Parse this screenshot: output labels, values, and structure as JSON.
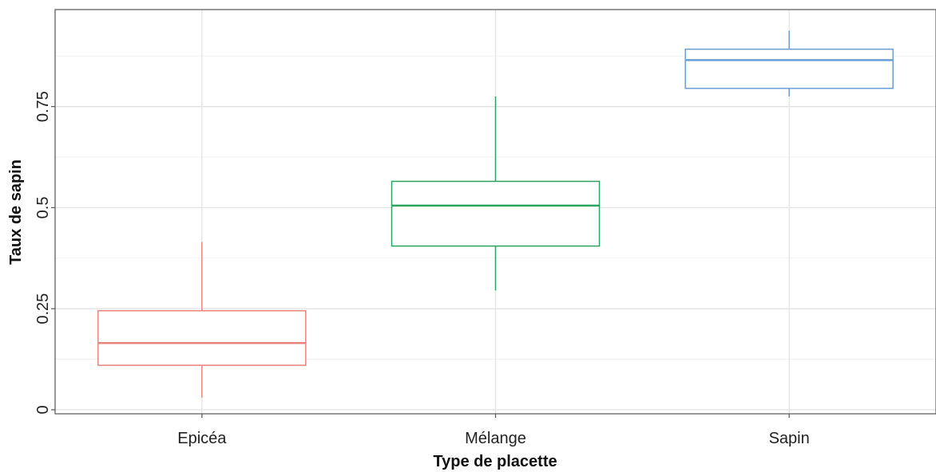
{
  "chart_data": {
    "type": "boxplot",
    "title": "",
    "xlabel": "Type de placette",
    "ylabel": "Taux de sapin",
    "categories": [
      "Epicéa",
      "Mélange",
      "Sapin"
    ],
    "ylim": [
      -0.01,
      0.99
    ],
    "yticks": [
      0,
      0.25,
      0.5,
      0.75
    ],
    "ytick_labels": [
      "0",
      "0.25",
      "0.5",
      "0.75"
    ],
    "grid": true,
    "legend": "none",
    "boxes": [
      {
        "category": "Epicéa",
        "color": "#E8847C",
        "whisker_low": 0.03,
        "q1": 0.11,
        "median": 0.165,
        "q3": 0.245,
        "whisker_high": 0.415
      },
      {
        "category": "Mélange",
        "color": "#2CA25F",
        "whisker_low": 0.295,
        "q1": 0.405,
        "median": 0.505,
        "q3": 0.565,
        "whisker_high": 0.775
      },
      {
        "category": "Sapin",
        "color": "#6A9ED9",
        "whisker_low": 0.775,
        "q1": 0.795,
        "median": 0.865,
        "q3": 0.892,
        "whisker_high": 0.938
      }
    ]
  }
}
